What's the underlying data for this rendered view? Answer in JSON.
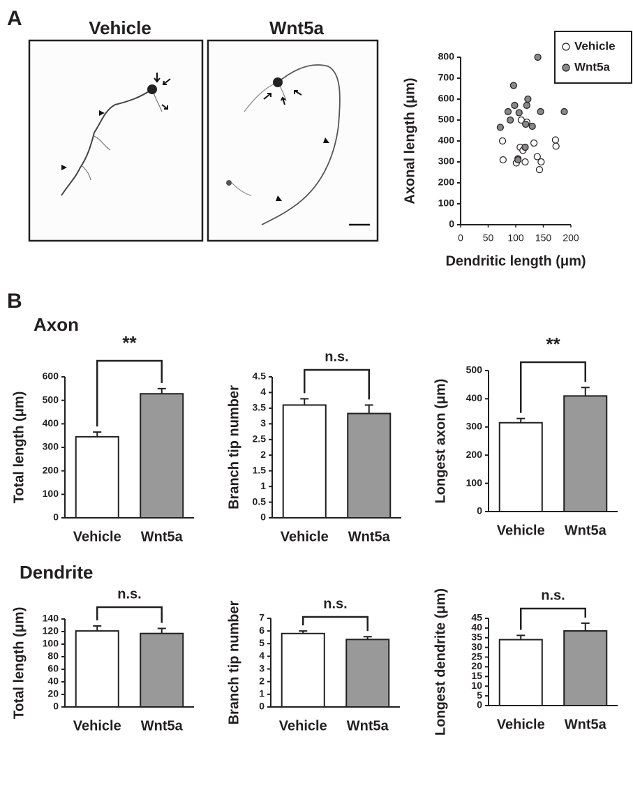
{
  "panel_labels": [
    "A",
    "B"
  ],
  "image_titles": [
    "Vehicle",
    "Wnt5a"
  ],
  "section_titles": [
    "Axon",
    "Dendrite"
  ],
  "chart_data": [
    {
      "type": "scatter",
      "xlabel": "Dendritic length (μm)",
      "ylabel": "Axonal length (μm)",
      "xlim": [
        0,
        200
      ],
      "xticks": [
        0,
        50,
        100,
        150,
        200
      ],
      "ylim": [
        0,
        800
      ],
      "yticks": [
        0,
        100,
        200,
        300,
        400,
        500,
        600,
        700,
        800
      ],
      "legend": "upper right",
      "series": [
        {
          "name": "Vehicle",
          "color": "#ffffff",
          "x": [
            76,
            77,
            101,
            104,
            108,
            110,
            113,
            117,
            117,
            120,
            133,
            139,
            143,
            146,
            172,
            173
          ],
          "values": [
            400,
            310,
            295,
            315,
            370,
            500,
            355,
            370,
            300,
            490,
            390,
            325,
            263,
            300,
            405,
            375
          ]
        },
        {
          "name": "Wnt5a",
          "color": "#888888",
          "x": [
            72,
            86,
            90,
            96,
            98,
            104,
            106,
            117,
            118,
            120,
            122,
            130,
            140,
            145,
            188
          ],
          "values": [
            465,
            540,
            500,
            665,
            570,
            310,
            535,
            370,
            480,
            570,
            600,
            470,
            800,
            540,
            540
          ]
        }
      ]
    },
    {
      "type": "bar",
      "ylabel": "Total length (μm)",
      "categories": [
        "Vehicle",
        "Wnt5a"
      ],
      "values": [
        345,
        528
      ],
      "errors": [
        20,
        22
      ],
      "colors": [
        "#ffffff",
        "#999999"
      ],
      "ylim": [
        0,
        600
      ],
      "yticks": [
        0,
        100,
        200,
        300,
        400,
        500,
        600
      ],
      "annotation": "**"
    },
    {
      "type": "bar",
      "ylabel": "Branch tip number",
      "categories": [
        "Vehicle",
        "Wnt5a"
      ],
      "values": [
        3.6,
        3.33
      ],
      "errors": [
        0.2,
        0.27
      ],
      "colors": [
        "#ffffff",
        "#999999"
      ],
      "ylim": [
        0,
        4.5
      ],
      "yticks": [
        0,
        0.5,
        1,
        1.5,
        2,
        2.5,
        3,
        3.5,
        4,
        4.5
      ],
      "annotation": "n.s."
    },
    {
      "type": "bar",
      "ylabel": "Longest axon (μm)",
      "categories": [
        "Vehicle",
        "Wnt5a"
      ],
      "values": [
        315,
        410
      ],
      "errors": [
        15,
        30
      ],
      "colors": [
        "#ffffff",
        "#999999"
      ],
      "ylim": [
        0,
        500
      ],
      "yticks": [
        0,
        100,
        200,
        300,
        400,
        500
      ],
      "annotation": "**"
    },
    {
      "type": "bar",
      "ylabel": "Total length (μm)",
      "categories": [
        "Vehicle",
        "Wnt5a"
      ],
      "values": [
        121,
        117
      ],
      "errors": [
        8,
        8
      ],
      "colors": [
        "#ffffff",
        "#999999"
      ],
      "ylim": [
        0,
        140
      ],
      "yticks": [
        0,
        20,
        40,
        60,
        80,
        100,
        120,
        140
      ],
      "annotation": "n.s."
    },
    {
      "type": "bar",
      "ylabel": "Branch tip number",
      "categories": [
        "Vehicle",
        "Wnt5a"
      ],
      "values": [
        5.8,
        5.33
      ],
      "errors": [
        0.2,
        0.22
      ],
      "colors": [
        "#ffffff",
        "#999999"
      ],
      "ylim": [
        0,
        7
      ],
      "yticks": [
        0,
        1,
        2,
        3,
        4,
        5,
        6,
        7
      ],
      "annotation": "n.s."
    },
    {
      "type": "bar",
      "ylabel": "Longest dendrite (μm)",
      "categories": [
        "Vehicle",
        "Wnt5a"
      ],
      "values": [
        34,
        38.5
      ],
      "errors": [
        2.2,
        4
      ],
      "colors": [
        "#ffffff",
        "#999999"
      ],
      "ylim": [
        0,
        45
      ],
      "yticks": [
        0,
        5,
        10,
        15,
        20,
        25,
        30,
        35,
        40,
        45
      ],
      "annotation": "n.s."
    }
  ]
}
